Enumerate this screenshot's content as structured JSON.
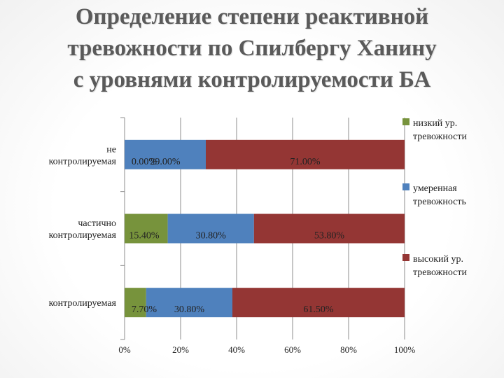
{
  "title_lines": [
    "Определение степени реактивной",
    "тревожности по Спилбергу Ханину",
    "с уровнями контролируемости БА"
  ],
  "chart_data": {
    "type": "bar",
    "orientation": "horizontal",
    "stacked": "percent",
    "categories": [
      [
        "не",
        "контролируемая"
      ],
      [
        "частично",
        "контролируемая"
      ],
      [
        "контролируемая"
      ]
    ],
    "series": [
      {
        "name": [
          "низкий ур.",
          "тревожности"
        ],
        "color": "#77933c",
        "values": [
          0.0,
          15.4,
          7.7
        ],
        "labels": [
          "0.00%",
          "15.40%",
          "7.70%"
        ]
      },
      {
        "name": [
          "умеренная",
          "тревожность"
        ],
        "color": "#4f81bd",
        "values": [
          29.0,
          30.8,
          30.8
        ],
        "labels": [
          "29.00%",
          "30.80%",
          "30.80%"
        ]
      },
      {
        "name": [
          "высокий ур.",
          "тревожности"
        ],
        "color": "#943634",
        "values": [
          71.0,
          53.8,
          61.5
        ],
        "labels": [
          "71.00%",
          "53.80%",
          "61.50%"
        ]
      }
    ],
    "xlim": [
      0,
      100
    ],
    "xticks": [
      "0%",
      "20%",
      "40%",
      "60%",
      "80%",
      "100%"
    ],
    "grid": true,
    "legend": "right"
  }
}
